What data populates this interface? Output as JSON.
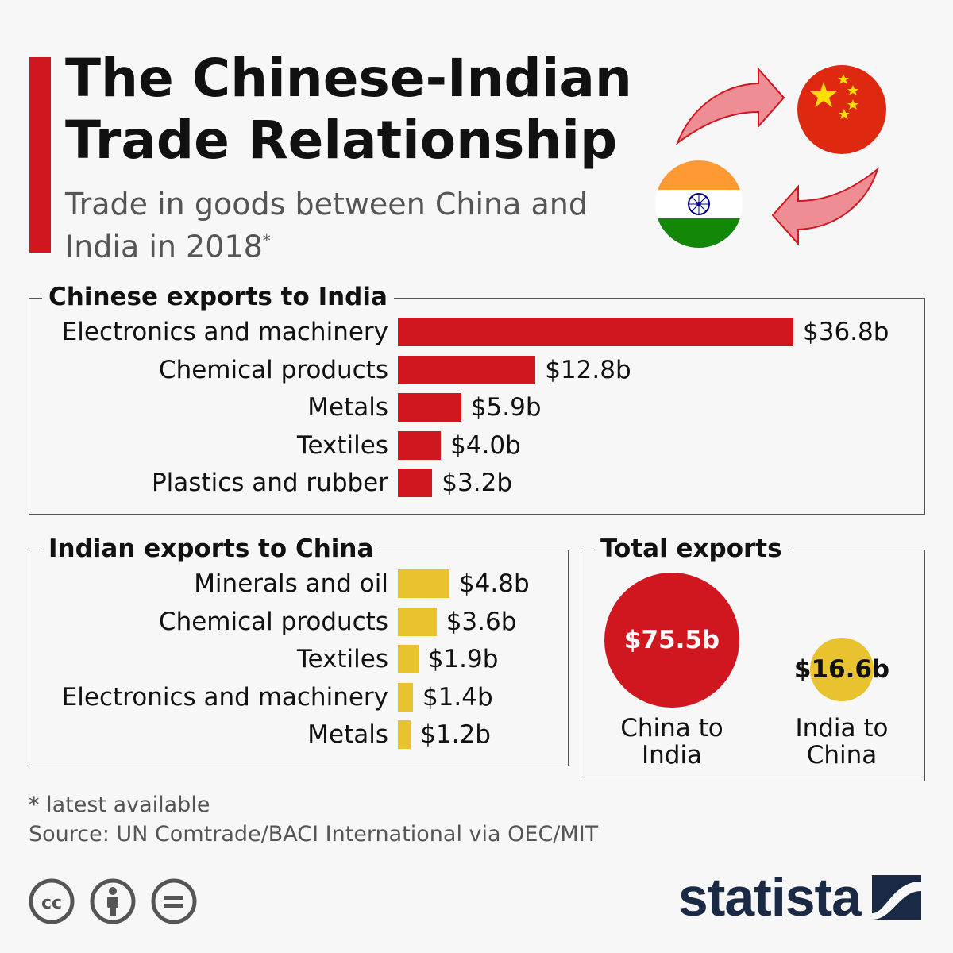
{
  "header": {
    "title_line1": "The Chinese-Indian",
    "title_line2": "Trade Relationship",
    "subtitle_line1": "Trade in goods between China and",
    "subtitle_line2": "India in 2018",
    "subtitle_mark": "*"
  },
  "colors": {
    "accent": "#d0161f",
    "china_bars": "#d0161f",
    "india_bars": "#e8c22f",
    "brand": "#1b2a44"
  },
  "chart_data": [
    {
      "type": "bar",
      "orientation": "horizontal",
      "title": "Chinese exports to India",
      "categories": [
        "Electronics and machinery",
        "Chemical products",
        "Metals",
        "Textiles",
        "Plastics and rubber"
      ],
      "values": [
        36.8,
        12.8,
        5.9,
        4.0,
        3.2
      ],
      "value_labels": [
        "$36.8b",
        "$12.8b",
        "$5.9b",
        "$4.0b",
        "$3.2b"
      ],
      "unit": "$b",
      "color": "#d0161f"
    },
    {
      "type": "bar",
      "orientation": "horizontal",
      "title": "Indian exports to China",
      "categories": [
        "Minerals and oil",
        "Chemical products",
        "Textiles",
        "Electronics and machinery",
        "Metals"
      ],
      "values": [
        4.8,
        3.6,
        1.9,
        1.4,
        1.2
      ],
      "value_labels": [
        "$4.8b",
        "$3.6b",
        "$1.9b",
        "$1.4b",
        "$1.2b"
      ],
      "unit": "$b",
      "color": "#e8c22f"
    },
    {
      "type": "bubble",
      "title": "Total exports",
      "categories": [
        "China to India",
        "India to China"
      ],
      "values": [
        75.5,
        16.6
      ],
      "value_labels": [
        "$75.5b",
        "$16.6b"
      ],
      "label_lines": [
        [
          "China to",
          "India"
        ],
        [
          "India to",
          "China"
        ]
      ],
      "colors": [
        "#d0161f",
        "#e8c22f"
      ]
    }
  ],
  "footer": {
    "footnote": "* latest available",
    "source": "Source: UN Comtrade/BACI International via OEC/MIT",
    "brand": "statista",
    "license_icons": [
      "cc-icon",
      "attribution-icon",
      "no-derivatives-icon"
    ]
  }
}
